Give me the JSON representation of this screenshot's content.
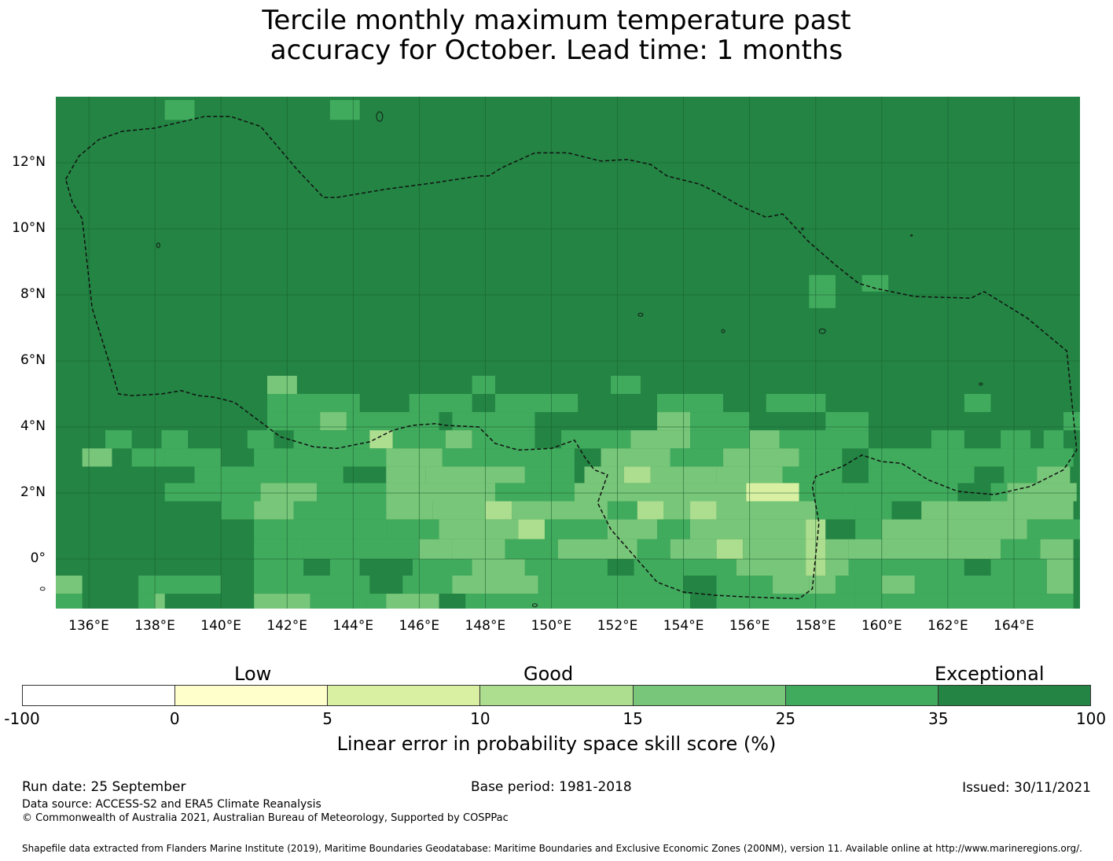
{
  "title_line1": "Tercile monthly maximum temperature past",
  "title_line2": "accuracy for October. Lead time: 1 months",
  "map": {
    "lon_range": [
      135,
      166
    ],
    "lat_range": [
      -1.5,
      14
    ],
    "lat_ticks": [
      {
        "value": 12,
        "label": "12°N"
      },
      {
        "value": 10,
        "label": "10°N"
      },
      {
        "value": 8,
        "label": "8°N"
      },
      {
        "value": 6,
        "label": "6°N"
      },
      {
        "value": 4,
        "label": "4°N"
      },
      {
        "value": 2,
        "label": "2°N"
      },
      {
        "value": 0,
        "label": "0°"
      }
    ],
    "lon_ticks": [
      {
        "value": 136,
        "label": "136°E"
      },
      {
        "value": 138,
        "label": "138°E"
      },
      {
        "value": 140,
        "label": "140°E"
      },
      {
        "value": 142,
        "label": "142°E"
      },
      {
        "value": 144,
        "label": "144°E"
      },
      {
        "value": 146,
        "label": "146°E"
      },
      {
        "value": 148,
        "label": "148°E"
      },
      {
        "value": 150,
        "label": "150°E"
      },
      {
        "value": 152,
        "label": "152°E"
      },
      {
        "value": 154,
        "label": "154°E"
      },
      {
        "value": 156,
        "label": "156°E"
      },
      {
        "value": 158,
        "label": "158°E"
      },
      {
        "value": 160,
        "label": "160°E"
      },
      {
        "value": 162,
        "label": "162°E"
      },
      {
        "value": 164,
        "label": "164°E"
      }
    ],
    "eez_boundary": [
      [
        135.3,
        11.5
      ],
      [
        135.7,
        12.2
      ],
      [
        136.3,
        12.7
      ],
      [
        137,
        12.95
      ],
      [
        138,
        13.05
      ],
      [
        139.5,
        13.4
      ],
      [
        140.3,
        13.4
      ],
      [
        141.2,
        13.1
      ],
      [
        142.3,
        11.8
      ],
      [
        143.1,
        10.95
      ],
      [
        143.5,
        10.95
      ],
      [
        145,
        11.2
      ],
      [
        146.5,
        11.4
      ],
      [
        147.8,
        11.6
      ],
      [
        148.1,
        11.6
      ],
      [
        148.5,
        11.85
      ],
      [
        149.5,
        12.3
      ],
      [
        150.5,
        12.3
      ],
      [
        151.5,
        12.05
      ],
      [
        152.3,
        12.1
      ],
      [
        153,
        11.95
      ],
      [
        153.5,
        11.6
      ],
      [
        154.5,
        11.35
      ],
      [
        155,
        11.1
      ],
      [
        155.7,
        10.7
      ],
      [
        156.5,
        10.35
      ],
      [
        157,
        10.45
      ],
      [
        157.8,
        9.6
      ],
      [
        158.6,
        8.9
      ],
      [
        159.3,
        8.35
      ],
      [
        159.8,
        8.2
      ],
      [
        161,
        7.95
      ],
      [
        162.7,
        7.9
      ],
      [
        163.1,
        8.1
      ],
      [
        164.4,
        7.3
      ],
      [
        165.6,
        6.3
      ],
      [
        165.9,
        3.3
      ],
      [
        165.5,
        2.7
      ],
      [
        164.5,
        2.2
      ],
      [
        163.4,
        1.95
      ],
      [
        162.3,
        2.05
      ],
      [
        161.4,
        2.4
      ],
      [
        160.6,
        2.9
      ],
      [
        160,
        2.95
      ],
      [
        159.4,
        3.15
      ],
      [
        158.8,
        2.8
      ],
      [
        158,
        2.5
      ],
      [
        157.9,
        2.2
      ],
      [
        158.1,
        1.1
      ],
      [
        157.9,
        -0.9
      ],
      [
        157.5,
        -1.2
      ],
      [
        156,
        -1.15
      ],
      [
        155,
        -1.1
      ],
      [
        154,
        -1
      ],
      [
        153.2,
        -0.7
      ],
      [
        152.5,
        0.1
      ],
      [
        151.8,
        0.9
      ],
      [
        151.4,
        1.7
      ],
      [
        151.7,
        2.55
      ],
      [
        151.3,
        2.7
      ],
      [
        151,
        3.1
      ],
      [
        150.7,
        3.6
      ],
      [
        150,
        3.35
      ],
      [
        149,
        3.3
      ],
      [
        148.3,
        3.5
      ],
      [
        147.8,
        4.0
      ],
      [
        146.8,
        4.05
      ],
      [
        146.5,
        4.1
      ],
      [
        145.8,
        4.05
      ],
      [
        145.2,
        3.9
      ],
      [
        144.5,
        3.55
      ],
      [
        143.5,
        3.35
      ],
      [
        142.8,
        3.4
      ],
      [
        141.8,
        3.7
      ],
      [
        141,
        4.3
      ],
      [
        140.4,
        4.75
      ],
      [
        139.8,
        4.9
      ],
      [
        139.3,
        4.95
      ],
      [
        138.8,
        5.1
      ],
      [
        138.2,
        5.0
      ],
      [
        137.3,
        4.95
      ],
      [
        136.9,
        5.0
      ],
      [
        136.6,
        6.0
      ],
      [
        136.1,
        7.6
      ],
      [
        135.8,
        10.3
      ],
      [
        135.5,
        10.8
      ],
      [
        135.3,
        11.5
      ]
    ]
  },
  "colorbar": {
    "word_low": "Low",
    "word_good": "Good",
    "word_exceptional": "Exceptional",
    "ticks": [
      "-100",
      "0",
      "5",
      "10",
      "15",
      "25",
      "35",
      "100"
    ],
    "colors": [
      "#ffffff",
      "#ffffcc",
      "#d9f0a3",
      "#addd8e",
      "#78c679",
      "#41ab5d",
      "#238443"
    ],
    "label": "Linear error in probability space skill score (%)"
  },
  "footer": {
    "run_date": "Run date: 25 September",
    "base_period": "Base period: 1981-2018",
    "issued": "Issued: 30/11/2021",
    "data_source": "Data source: ACCESS-S2 and ERA5 Climate Reanalysis",
    "copyright": "© Commonwealth of Australia 2021, Australian Bureau of Meteorology, Supported by COSPPac",
    "shapefile": "Shapefile data extracted from Flanders Marine Institute (2019), Maritime Boundaries Geodatabase: Maritime Boundaries and Exclusive Economic Zones (200NM), version 11. Available online at http://www.marineregions.org/."
  }
}
